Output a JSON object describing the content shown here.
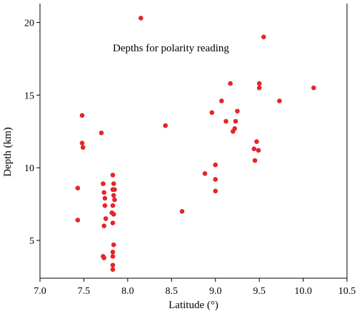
{
  "chart_data": {
    "type": "scatter",
    "xlabel": "Latitude (°)",
    "ylabel": "Depth (km)",
    "annotation": "Depths for polarity reading",
    "xlim": [
      7.0,
      10.5
    ],
    "ylim": [
      2.4,
      21.3
    ],
    "xticks": [
      7.0,
      7.5,
      8.0,
      8.5,
      9.0,
      9.5,
      10.0,
      10.5
    ],
    "xtick_labels": [
      "7.0",
      "7.5",
      "8.0",
      "8.5",
      "9.0",
      "9.5",
      "10.0",
      "10.5"
    ],
    "yticks": [
      5,
      10,
      15,
      20
    ],
    "ytick_labels": [
      "5",
      "10",
      "15",
      "20"
    ],
    "grid": false,
    "marker_color": "#e3262b",
    "points": [
      {
        "x": 7.43,
        "y": 8.6
      },
      {
        "x": 7.43,
        "y": 6.4
      },
      {
        "x": 7.48,
        "y": 13.6
      },
      {
        "x": 7.48,
        "y": 11.7
      },
      {
        "x": 7.49,
        "y": 11.4
      },
      {
        "x": 7.7,
        "y": 12.4
      },
      {
        "x": 7.72,
        "y": 8.9
      },
      {
        "x": 7.73,
        "y": 8.3
      },
      {
        "x": 7.74,
        "y": 7.9
      },
      {
        "x": 7.74,
        "y": 7.4
      },
      {
        "x": 7.75,
        "y": 6.5
      },
      {
        "x": 7.73,
        "y": 6.0
      },
      {
        "x": 7.72,
        "y": 3.9
      },
      {
        "x": 7.73,
        "y": 3.8
      },
      {
        "x": 7.83,
        "y": 9.5
      },
      {
        "x": 7.84,
        "y": 8.9
      },
      {
        "x": 7.83,
        "y": 8.5
      },
      {
        "x": 7.85,
        "y": 8.5
      },
      {
        "x": 7.84,
        "y": 8.1
      },
      {
        "x": 7.85,
        "y": 7.8
      },
      {
        "x": 7.83,
        "y": 7.4
      },
      {
        "x": 7.82,
        "y": 6.9
      },
      {
        "x": 7.84,
        "y": 6.8
      },
      {
        "x": 7.83,
        "y": 6.2
      },
      {
        "x": 7.84,
        "y": 4.7
      },
      {
        "x": 7.83,
        "y": 4.2
      },
      {
        "x": 7.83,
        "y": 3.9
      },
      {
        "x": 7.83,
        "y": 3.3
      },
      {
        "x": 7.83,
        "y": 3.0
      },
      {
        "x": 8.15,
        "y": 20.3
      },
      {
        "x": 8.43,
        "y": 12.9
      },
      {
        "x": 8.62,
        "y": 7.0
      },
      {
        "x": 8.88,
        "y": 9.6
      },
      {
        "x": 8.96,
        "y": 13.8
      },
      {
        "x": 9.0,
        "y": 10.2
      },
      {
        "x": 9.0,
        "y": 9.2
      },
      {
        "x": 9.0,
        "y": 8.4
      },
      {
        "x": 9.07,
        "y": 14.6
      },
      {
        "x": 9.12,
        "y": 13.2
      },
      {
        "x": 9.17,
        "y": 15.8
      },
      {
        "x": 9.2,
        "y": 12.5
      },
      {
        "x": 9.22,
        "y": 12.7
      },
      {
        "x": 9.23,
        "y": 13.2
      },
      {
        "x": 9.25,
        "y": 13.9
      },
      {
        "x": 9.44,
        "y": 11.3
      },
      {
        "x": 9.45,
        "y": 10.5
      },
      {
        "x": 9.47,
        "y": 11.8
      },
      {
        "x": 9.49,
        "y": 11.2
      },
      {
        "x": 9.5,
        "y": 15.8
      },
      {
        "x": 9.5,
        "y": 15.5
      },
      {
        "x": 9.55,
        "y": 19.0
      },
      {
        "x": 9.73,
        "y": 14.6
      },
      {
        "x": 10.12,
        "y": 15.5
      }
    ]
  }
}
